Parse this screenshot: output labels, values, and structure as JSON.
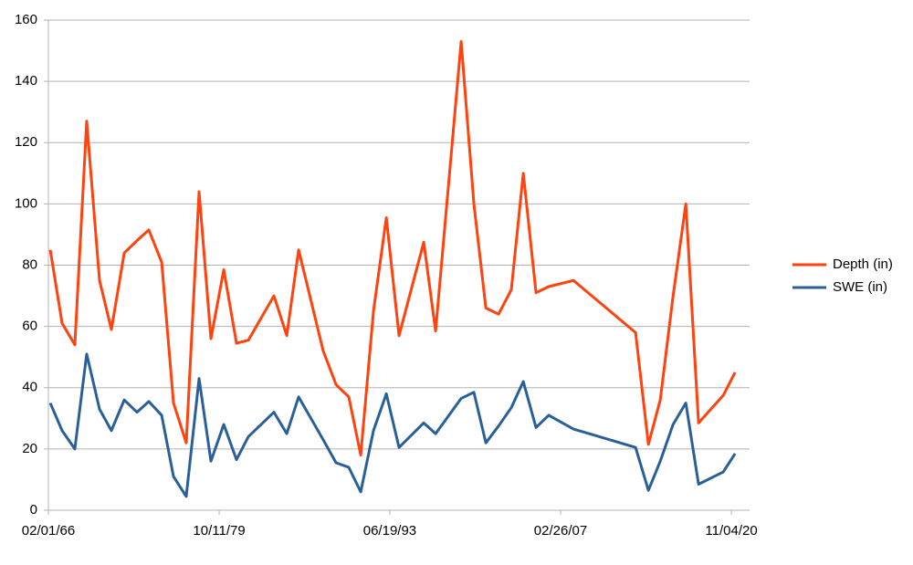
{
  "chart_data": {
    "type": "line",
    "x": [
      1966.24,
      1967.19,
      1968.21,
      1969.16,
      1970.19,
      1971.14,
      1972.17,
      1973.19,
      1974.14,
      1975.17,
      1976.12,
      1977.14,
      1978.17,
      1979.12,
      1980.15,
      1981.17,
      1982.12,
      1984.17,
      1985.2,
      1986.15,
      1988.12,
      1989.15,
      1990.17,
      1991.13,
      1992.15,
      1993.18,
      1994.2,
      1996.18,
      1997.13,
      1999.18,
      2000.2,
      2001.16,
      2002.18,
      2003.2,
      2004.16,
      2005.18,
      2006.2,
      2008.18,
      2013.16,
      2014.19,
      2015.14,
      2016.17,
      2017.19,
      2018.21,
      2020.19,
      2021.14
    ],
    "series": [
      {
        "name": "Depth (in)",
        "color": "#ff420e",
        "values": [
          85,
          61,
          54,
          127,
          75,
          59,
          84,
          88,
          91.5,
          81,
          35,
          22,
          104,
          56,
          78.5,
          54.5,
          55.5,
          70,
          57,
          85,
          52,
          41,
          37,
          18,
          65,
          95.5,
          57,
          87.5,
          58.5,
          153,
          100,
          66,
          64,
          72,
          110,
          71,
          73,
          75,
          58,
          21.5,
          36,
          70,
          100,
          28.5,
          37.5,
          45
        ]
      },
      {
        "name": "SWE (in)",
        "color": "#2a6099",
        "values": [
          35,
          26,
          20,
          51,
          33,
          26,
          36,
          32,
          35.5,
          31,
          11,
          4.5,
          43,
          16,
          28,
          16.5,
          24,
          32,
          25,
          37,
          23,
          15.5,
          14,
          6,
          26,
          38,
          20.5,
          28.5,
          25,
          36.5,
          38.5,
          22,
          27.5,
          33.5,
          42,
          27,
          31,
          26.5,
          20.5,
          6.5,
          16,
          28,
          35,
          8.5,
          12.5,
          18.5
        ]
      }
    ],
    "xlim": [
      1966.09,
      2022.3
    ],
    "xticks": [
      {
        "value": 1966.09,
        "label": "02/01/66"
      },
      {
        "value": 1979.78,
        "label": "10/11/79"
      },
      {
        "value": 1993.46,
        "label": "06/19/93"
      },
      {
        "value": 2007.15,
        "label": "02/26/07"
      },
      {
        "value": 2020.84,
        "label": "11/04/20"
      }
    ],
    "ylim": [
      0,
      160
    ],
    "yticks": [
      0,
      20,
      40,
      60,
      80,
      100,
      120,
      140,
      160
    ],
    "grid": true,
    "legend": "right"
  }
}
